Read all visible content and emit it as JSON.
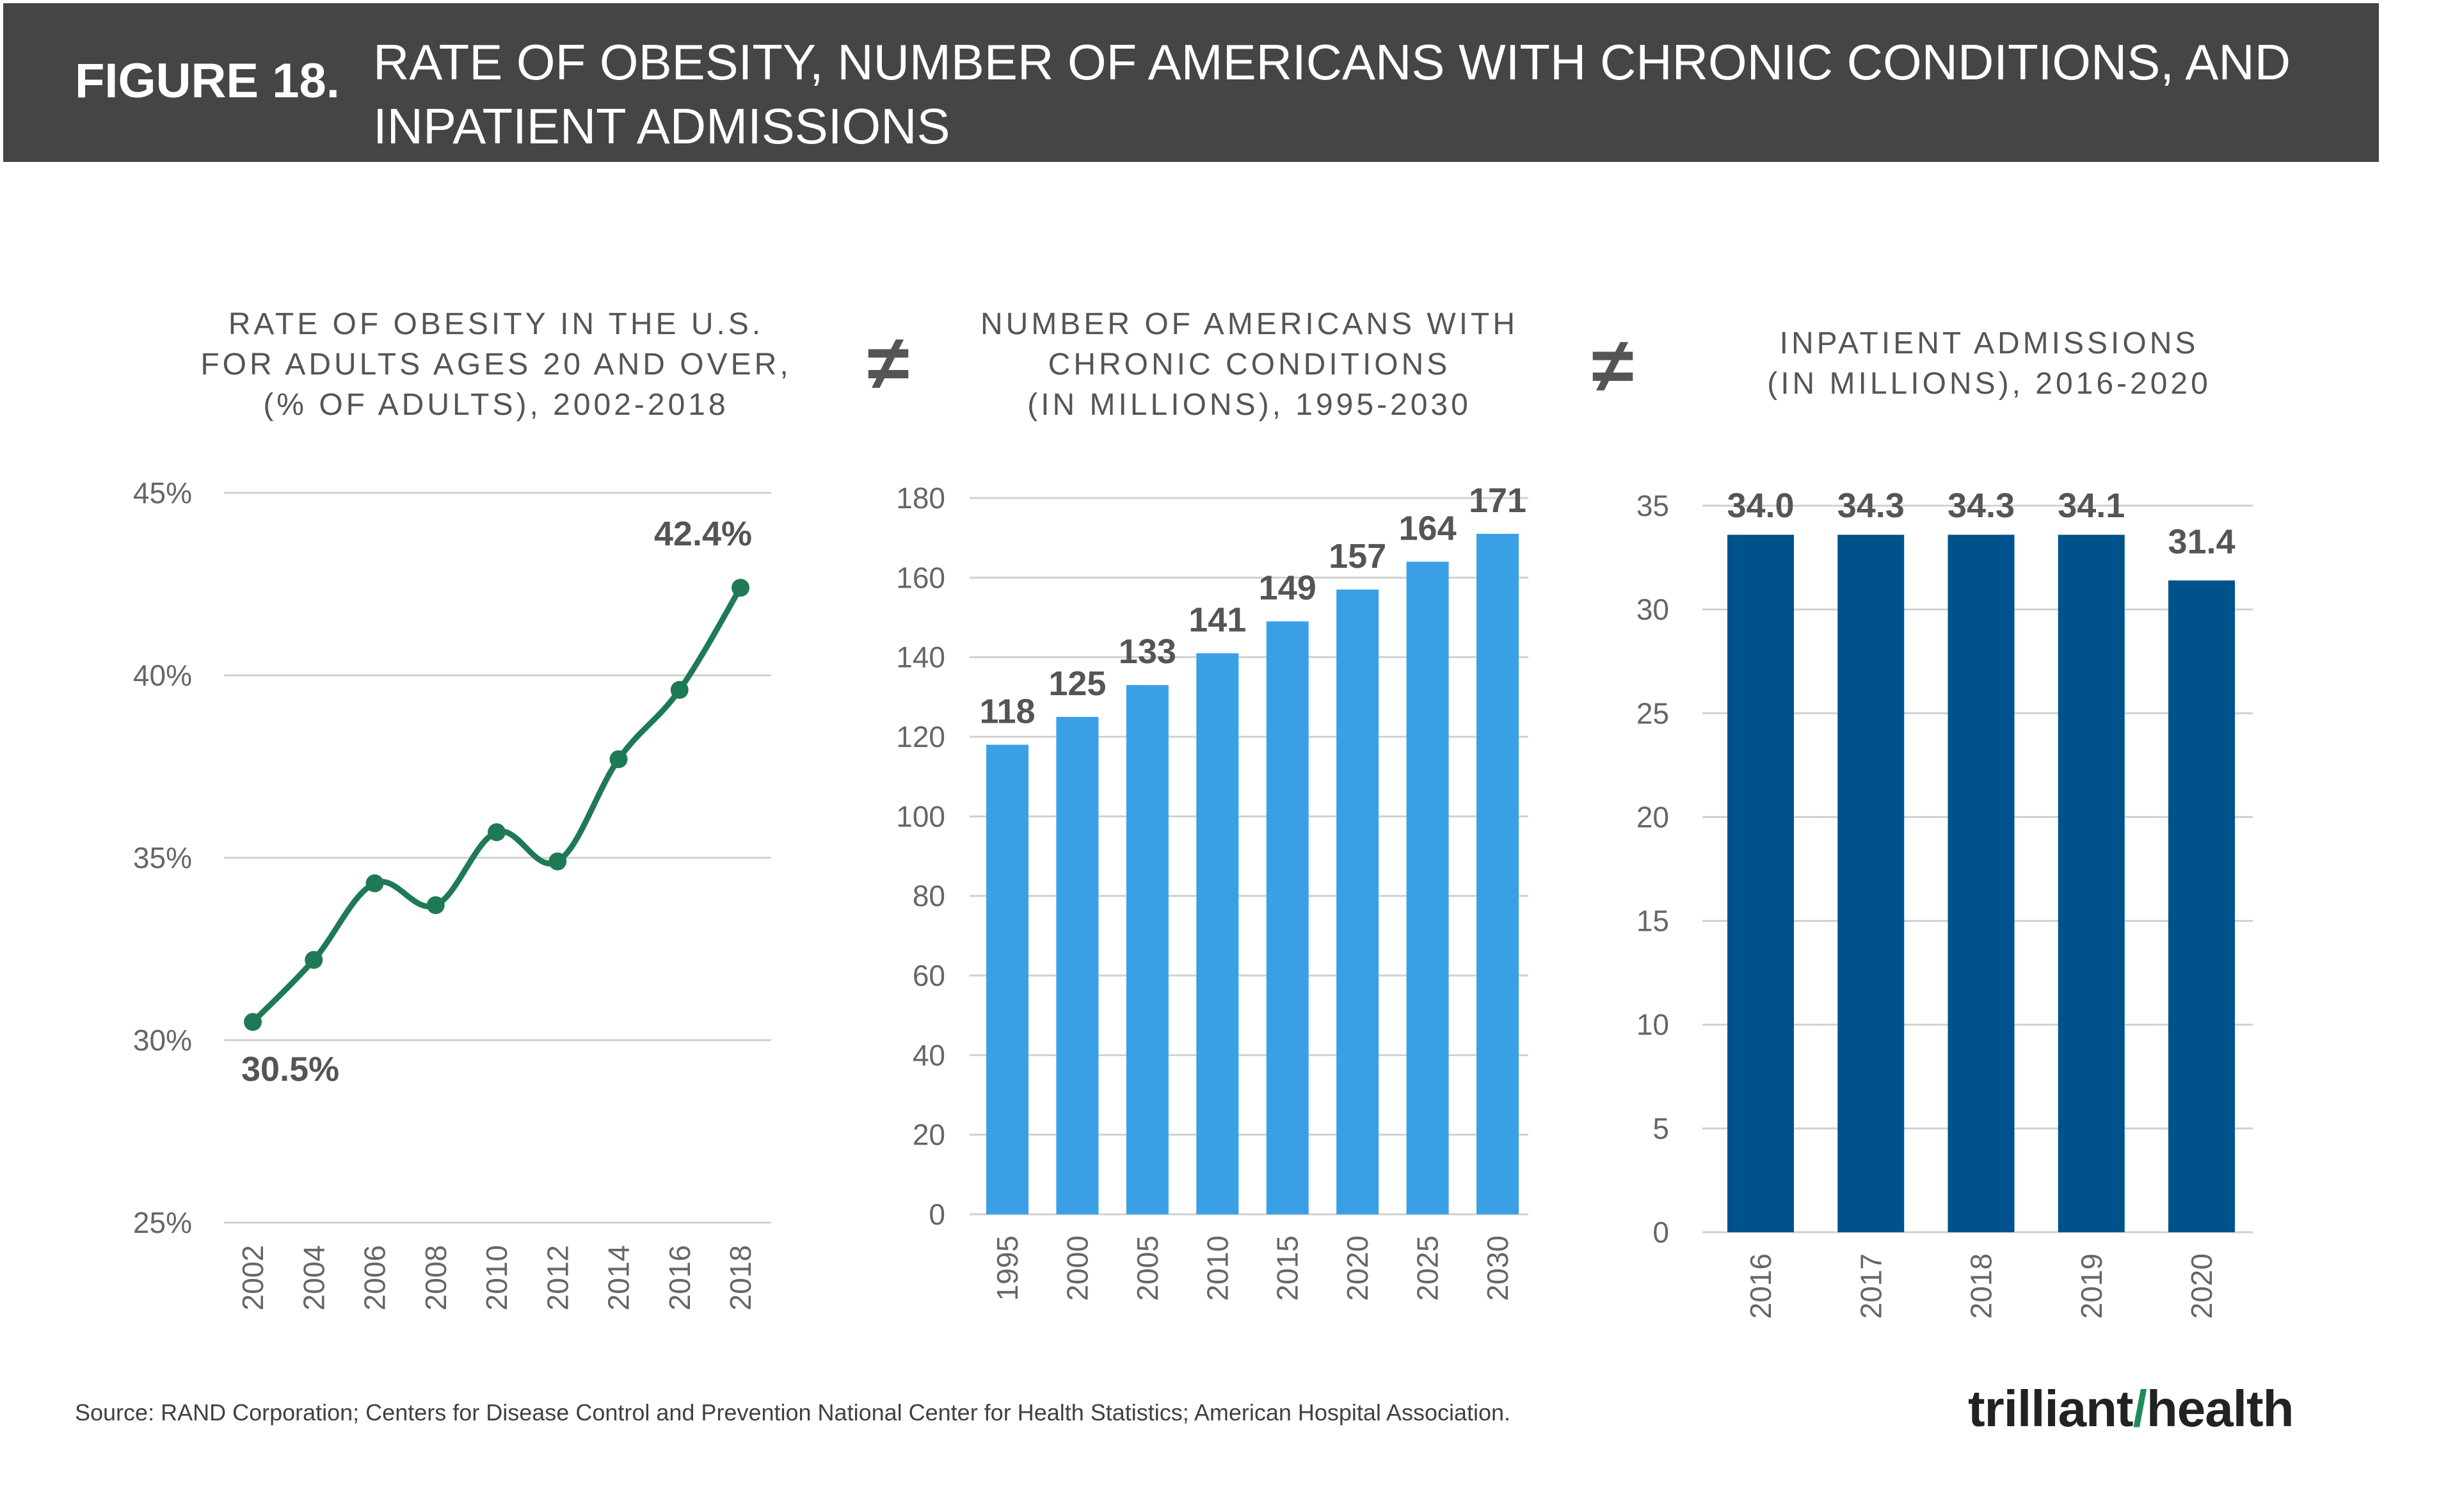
{
  "header": {
    "figure_label": "FIGURE 18.",
    "title": "RATE OF OBESITY, NUMBER OF AMERICANS WITH CHRONIC CONDITIONS, AND INPATIENT ADMISSIONS"
  },
  "separators": [
    "≠",
    "≠"
  ],
  "chart_data": [
    {
      "type": "line",
      "title": "RATE OF OBESITY IN THE U.S. FOR ADULTS AGES 20 AND OVER, (% OF ADULTS), 2002-2018",
      "title_lines": [
        "RATE OF OBESITY IN THE U.S.",
        "FOR ADULTS AGES 20 AND OVER,",
        "(% OF ADULTS), 2002-2018"
      ],
      "x": [
        "2002",
        "2004",
        "2006",
        "2008",
        "2010",
        "2012",
        "2014",
        "2016",
        "2018"
      ],
      "values": [
        30.5,
        32.2,
        34.3,
        33.7,
        35.7,
        34.9,
        37.7,
        39.6,
        42.4
      ],
      "yticks": [
        "25%",
        "30%",
        "35%",
        "40%",
        "45%"
      ],
      "ylim": [
        25,
        45
      ],
      "annotations": [
        {
          "x": "2002",
          "label": "30.5%"
        },
        {
          "x": "2018",
          "label": "42.4%"
        }
      ],
      "color": "#1e7a55",
      "grid": true
    },
    {
      "type": "bar",
      "title": "NUMBER OF AMERICANS WITH CHRONIC CONDITIONS (IN MILLIONS), 1995-2030",
      "title_lines": [
        "NUMBER OF AMERICANS WITH",
        "CHRONIC CONDITIONS",
        "(IN MILLIONS), 1995-2030"
      ],
      "categories": [
        "1995",
        "2000",
        "2005",
        "2010",
        "2015",
        "2020",
        "2025",
        "2030"
      ],
      "values": [
        118,
        125,
        133,
        141,
        149,
        157,
        164,
        171
      ],
      "labels": [
        "118",
        "125",
        "133",
        "141",
        "149",
        "157",
        "164",
        "171"
      ],
      "yticks": [
        "0",
        "20",
        "40",
        "60",
        "80",
        "100",
        "120",
        "140",
        "160",
        "180"
      ],
      "ylim": [
        0,
        180
      ],
      "color": "#3aa0e6",
      "grid": true
    },
    {
      "type": "bar",
      "title": "INPATIENT ADMISSIONS (IN MILLIONS), 2016-2020",
      "title_lines": [
        "INPATIENT ADMISSIONS",
        "(IN MILLIONS), 2016-2020"
      ],
      "categories": [
        "2016",
        "2017",
        "2018",
        "2019",
        "2020"
      ],
      "values": [
        34.0,
        34.3,
        34.3,
        34.1,
        31.4
      ],
      "labels": [
        "34.0",
        "34.3",
        "34.3",
        "34.1",
        "31.4"
      ],
      "yticks": [
        "0",
        "5",
        "10",
        "15",
        "20",
        "25",
        "30",
        "35"
      ],
      "ylim": [
        0,
        35
      ],
      "color": "#00528c",
      "grid": true
    }
  ],
  "footer": {
    "source": "Source: RAND Corporation; Centers for Disease Control and Prevention National Center for Health Statistics; American Hospital Association.",
    "logo_left": "trilliant",
    "logo_right": "health",
    "logo_mark": "/"
  }
}
